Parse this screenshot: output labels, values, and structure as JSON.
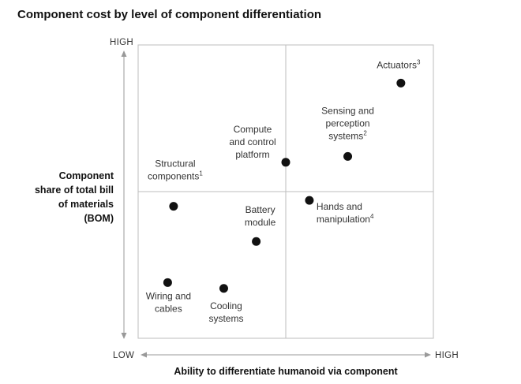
{
  "chart_data": {
    "type": "scatter",
    "title": "Component cost by level of component differentiation",
    "ylabel_lines": [
      "Component",
      "share of total bill",
      "of materials",
      "(BOM)"
    ],
    "xlabel": "Ability to differentiate humanoid via component",
    "y_high_label": "HIGH",
    "x_low_label": "LOW",
    "x_high_label": "HIGH",
    "xlim": [
      0,
      10
    ],
    "ylim": [
      0,
      10
    ],
    "quadrant_dividers": {
      "x": 5,
      "y": 5
    },
    "points": [
      {
        "name": "actuators",
        "label_lines": [
          "Actuators"
        ],
        "sup": "3",
        "x": 8.9,
        "y": 8.7,
        "anchor": "middle"
      },
      {
        "name": "sensing-and-perception-systems",
        "label_lines": [
          "Sensing and",
          "perception",
          "systems"
        ],
        "sup": "2",
        "x": 7.1,
        "y": 6.2,
        "anchor": "middle"
      },
      {
        "name": "compute-and-control-platform",
        "label_lines": [
          "Compute",
          "and control",
          "platform"
        ],
        "sup": "",
        "x": 5.0,
        "y": 6.0,
        "anchor": "middle"
      },
      {
        "name": "structural-components",
        "label_lines": [
          "Structural",
          "components"
        ],
        "sup": "1",
        "x": 1.2,
        "y": 4.5,
        "anchor": "middle"
      },
      {
        "name": "hands-and-manipulation",
        "label_lines": [
          "Hands and",
          "manipulation"
        ],
        "sup": "4",
        "x": 5.8,
        "y": 4.7,
        "anchor": "start"
      },
      {
        "name": "battery-module",
        "label_lines": [
          "Battery",
          "module"
        ],
        "sup": "",
        "x": 4.0,
        "y": 3.3,
        "anchor": "middle"
      },
      {
        "name": "wiring-and-cables",
        "label_lines": [
          "Wiring and",
          "cables"
        ],
        "sup": "",
        "x": 1.0,
        "y": 1.9,
        "anchor": "middle"
      },
      {
        "name": "cooling-systems",
        "label_lines": [
          "Cooling",
          "systems"
        ],
        "sup": "",
        "x": 2.9,
        "y": 1.7,
        "anchor": "middle"
      }
    ]
  }
}
